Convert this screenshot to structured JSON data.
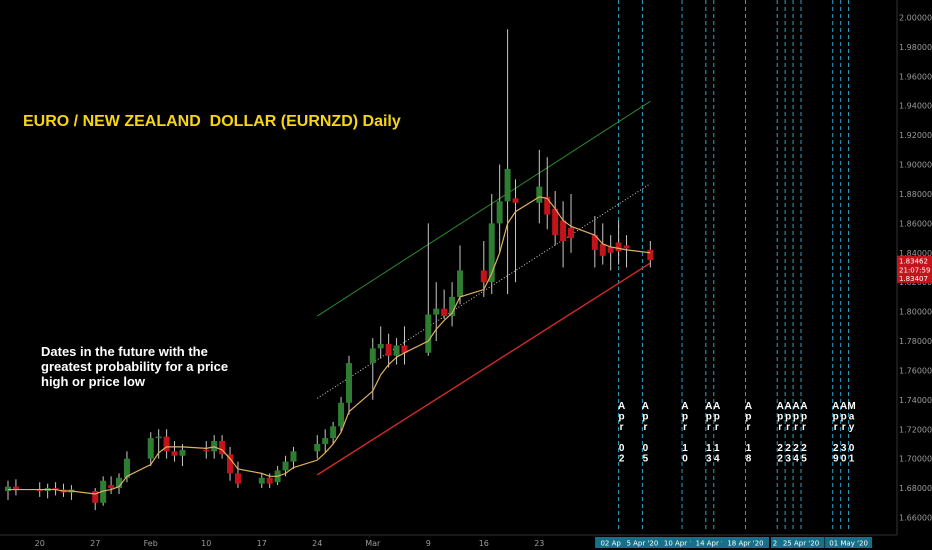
{
  "chart_title": "EURO / NEW ZEALAND  DOLLAR (EURNZD) Daily",
  "annotation": "Dates in the future with the greatest probability for a price high or price low",
  "colors": {
    "background": "#000000",
    "up_candle": "#2e7d32",
    "down_candle": "#c4141b",
    "wick": "#c8c8c8",
    "moving_average": "#e0b060",
    "upper_channel": "#2f8a2f",
    "support_line": "#d42a2a",
    "midline": "#d0d0d0",
    "forecast_line": "#2aa5c8",
    "title": "#f5d516",
    "date_tag_bg": "#1a6f88",
    "price_tag_bg": "#c4141b"
  },
  "chart_data": {
    "type": "candlestick",
    "title": "EURO / NEW ZEALAND  DOLLAR (EURNZD) Daily",
    "ylim": [
      1.65,
      2.01
    ],
    "y_ticks": [
      "2.00000",
      "1.98000",
      "1.96000",
      "1.94000",
      "1.92000",
      "1.90000",
      "1.88000",
      "1.86000",
      "1.84000",
      "1.82000",
      "1.80000",
      "1.78000",
      "1.76000",
      "1.74000",
      "1.72000",
      "1.70000",
      "1.68000",
      "1.66000"
    ],
    "x_ticks": [
      "20",
      "27",
      "Feb",
      "10",
      "17",
      "24",
      "Mar",
      "9",
      "16",
      "23"
    ],
    "candles": [
      {
        "date": "2020-01-16",
        "o": 1.678,
        "h": 1.685,
        "l": 1.672,
        "c": 1.681
      },
      {
        "date": "2020-01-17",
        "o": 1.681,
        "h": 1.686,
        "l": 1.675,
        "c": 1.679
      },
      {
        "date": "2020-01-20",
        "o": 1.679,
        "h": 1.684,
        "l": 1.674,
        "c": 1.678
      },
      {
        "date": "2020-01-21",
        "o": 1.678,
        "h": 1.683,
        "l": 1.673,
        "c": 1.68
      },
      {
        "date": "2020-01-22",
        "o": 1.68,
        "h": 1.684,
        "l": 1.675,
        "c": 1.679
      },
      {
        "date": "2020-01-23",
        "o": 1.679,
        "h": 1.683,
        "l": 1.674,
        "c": 1.677
      },
      {
        "date": "2020-01-24",
        "o": 1.677,
        "h": 1.682,
        "l": 1.672,
        "c": 1.679
      },
      {
        "date": "2020-01-27",
        "o": 1.678,
        "h": 1.68,
        "l": 1.665,
        "c": 1.67
      },
      {
        "date": "2020-01-28",
        "o": 1.67,
        "h": 1.688,
        "l": 1.668,
        "c": 1.685
      },
      {
        "date": "2020-01-29",
        "o": 1.682,
        "h": 1.688,
        "l": 1.676,
        "c": 1.68
      },
      {
        "date": "2020-01-30",
        "o": 1.68,
        "h": 1.69,
        "l": 1.676,
        "c": 1.687
      },
      {
        "date": "2020-01-31",
        "o": 1.687,
        "h": 1.705,
        "l": 1.684,
        "c": 1.7
      },
      {
        "date": "2020-02-03",
        "o": 1.7,
        "h": 1.718,
        "l": 1.695,
        "c": 1.714
      },
      {
        "date": "2020-02-04",
        "o": 1.714,
        "h": 1.72,
        "l": 1.7,
        "c": 1.715
      },
      {
        "date": "2020-02-05",
        "o": 1.715,
        "h": 1.72,
        "l": 1.7,
        "c": 1.705
      },
      {
        "date": "2020-02-06",
        "o": 1.705,
        "h": 1.712,
        "l": 1.698,
        "c": 1.702
      },
      {
        "date": "2020-02-07",
        "o": 1.702,
        "h": 1.71,
        "l": 1.695,
        "c": 1.706
      },
      {
        "date": "2020-02-10",
        "o": 1.706,
        "h": 1.712,
        "l": 1.7,
        "c": 1.705
      },
      {
        "date": "2020-02-11",
        "o": 1.705,
        "h": 1.716,
        "l": 1.7,
        "c": 1.712
      },
      {
        "date": "2020-02-12",
        "o": 1.712,
        "h": 1.716,
        "l": 1.7,
        "c": 1.703
      },
      {
        "date": "2020-02-13",
        "o": 1.703,
        "h": 1.708,
        "l": 1.685,
        "c": 1.69
      },
      {
        "date": "2020-02-14",
        "o": 1.69,
        "h": 1.698,
        "l": 1.68,
        "c": 1.683
      },
      {
        "date": "2020-02-17",
        "o": 1.683,
        "h": 1.69,
        "l": 1.68,
        "c": 1.687
      },
      {
        "date": "2020-02-18",
        "o": 1.687,
        "h": 1.69,
        "l": 1.68,
        "c": 1.683
      },
      {
        "date": "2020-02-19",
        "o": 1.684,
        "h": 1.695,
        "l": 1.682,
        "c": 1.692
      },
      {
        "date": "2020-02-20",
        "o": 1.692,
        "h": 1.702,
        "l": 1.688,
        "c": 1.698
      },
      {
        "date": "2020-02-21",
        "o": 1.698,
        "h": 1.708,
        "l": 1.693,
        "c": 1.705
      },
      {
        "date": "2020-02-24",
        "o": 1.705,
        "h": 1.716,
        "l": 1.7,
        "c": 1.71
      },
      {
        "date": "2020-02-25",
        "o": 1.71,
        "h": 1.72,
        "l": 1.704,
        "c": 1.714
      },
      {
        "date": "2020-02-26",
        "o": 1.714,
        "h": 1.725,
        "l": 1.71,
        "c": 1.722
      },
      {
        "date": "2020-02-27",
        "o": 1.722,
        "h": 1.742,
        "l": 1.718,
        "c": 1.738
      },
      {
        "date": "2020-02-28",
        "o": 1.738,
        "h": 1.77,
        "l": 1.73,
        "c": 1.765
      },
      {
        "date": "2020-03-02",
        "o": 1.765,
        "h": 1.782,
        "l": 1.74,
        "c": 1.775
      },
      {
        "date": "2020-03-03",
        "o": 1.775,
        "h": 1.79,
        "l": 1.768,
        "c": 1.778
      },
      {
        "date": "2020-03-04",
        "o": 1.778,
        "h": 1.785,
        "l": 1.762,
        "c": 1.77
      },
      {
        "date": "2020-03-05",
        "o": 1.77,
        "h": 1.782,
        "l": 1.764,
        "c": 1.777
      },
      {
        "date": "2020-03-06",
        "o": 1.777,
        "h": 1.79,
        "l": 1.764,
        "c": 1.772
      },
      {
        "date": "2020-03-09",
        "o": 1.772,
        "h": 1.86,
        "l": 1.77,
        "c": 1.798
      },
      {
        "date": "2020-03-10",
        "o": 1.798,
        "h": 1.82,
        "l": 1.78,
        "c": 1.802
      },
      {
        "date": "2020-03-11",
        "o": 1.802,
        "h": 1.815,
        "l": 1.795,
        "c": 1.797
      },
      {
        "date": "2020-03-12",
        "o": 1.797,
        "h": 1.82,
        "l": 1.79,
        "c": 1.81
      },
      {
        "date": "2020-03-13",
        "o": 1.81,
        "h": 1.845,
        "l": 1.805,
        "c": 1.828
      },
      {
        "date": "2020-03-16",
        "o": 1.828,
        "h": 1.848,
        "l": 1.81,
        "c": 1.82
      },
      {
        "date": "2020-03-17",
        "o": 1.82,
        "h": 1.88,
        "l": 1.812,
        "c": 1.86
      },
      {
        "date": "2020-03-18",
        "o": 1.86,
        "h": 1.9,
        "l": 1.84,
        "c": 1.875
      },
      {
        "date": "2020-03-19",
        "o": 1.875,
        "h": 1.992,
        "l": 1.812,
        "c": 1.897
      },
      {
        "date": "2020-03-20",
        "o": 1.877,
        "h": 1.89,
        "l": 1.82,
        "c": 1.874
      },
      {
        "date": "2020-03-23",
        "o": 1.874,
        "h": 1.91,
        "l": 1.86,
        "c": 1.885
      },
      {
        "date": "2020-03-24",
        "o": 1.878,
        "h": 1.905,
        "l": 1.856,
        "c": 1.866
      },
      {
        "date": "2020-03-25",
        "o": 1.87,
        "h": 1.882,
        "l": 1.845,
        "c": 1.852
      },
      {
        "date": "2020-03-26",
        "o": 1.862,
        "h": 1.875,
        "l": 1.83,
        "c": 1.848
      },
      {
        "date": "2020-03-27",
        "o": 1.857,
        "h": 1.88,
        "l": 1.84,
        "c": 1.85
      },
      {
        "date": "2020-03-30",
        "o": 1.852,
        "h": 1.865,
        "l": 1.83,
        "c": 1.842
      },
      {
        "date": "2020-03-31",
        "o": 1.846,
        "h": 1.86,
        "l": 1.832,
        "c": 1.838
      },
      {
        "date": "2020-04-01",
        "o": 1.844,
        "h": 1.852,
        "l": 1.828,
        "c": 1.84
      },
      {
        "date": "2020-04-02",
        "o": 1.847,
        "h": 1.862,
        "l": 1.832,
        "c": 1.841
      },
      {
        "date": "2020-04-03",
        "o": 1.845,
        "h": 1.852,
        "l": 1.83,
        "c": 1.843
      },
      {
        "date": "2020-04-06",
        "o": 1.842,
        "h": 1.848,
        "l": 1.83,
        "c": 1.835
      }
    ],
    "moving_average": [
      1.679,
      1.679,
      1.679,
      1.679,
      1.679,
      1.678,
      1.678,
      1.676,
      1.678,
      1.679,
      1.681,
      1.688,
      1.696,
      1.704,
      1.708,
      1.708,
      1.708,
      1.707,
      1.708,
      1.706,
      1.7,
      1.693,
      1.69,
      1.688,
      1.688,
      1.69,
      1.694,
      1.699,
      1.704,
      1.71,
      1.718,
      1.732,
      1.746,
      1.757,
      1.764,
      1.769,
      1.772,
      1.78,
      1.788,
      1.794,
      1.799,
      1.81,
      1.815,
      1.826,
      1.84,
      1.86,
      1.868,
      1.878,
      1.877,
      1.87,
      1.862,
      1.858,
      1.852,
      1.846,
      1.844,
      1.843,
      1.842,
      1.84
    ],
    "upper_channel": [
      {
        "date": "2020-02-24",
        "y": 1.797
      },
      {
        "date": "2020-04-06",
        "y": 1.943
      }
    ],
    "midline": [
      {
        "date": "2020-02-24",
        "y": 1.741
      },
      {
        "date": "2020-04-06",
        "y": 1.887
      }
    ],
    "support_line": [
      {
        "date": "2020-02-24",
        "y": 1.689
      },
      {
        "date": "2020-04-06",
        "y": 1.833
      }
    ],
    "forecast_dates": [
      {
        "date": "2020-04-02",
        "label": "Apr\n02"
      },
      {
        "date": "2020-04-05",
        "label": "Apr\n05"
      },
      {
        "date": "2020-04-10",
        "label": "Apr\n10"
      },
      {
        "date": "2020-04-13",
        "label": "Apr\n13"
      },
      {
        "date": "2020-04-14",
        "label": "Apr\n14"
      },
      {
        "date": "2020-04-18",
        "label": "Apr\n18"
      },
      {
        "date": "2020-04-22",
        "label": "Apr\n22"
      },
      {
        "date": "2020-04-23",
        "label": "Apr\n23"
      },
      {
        "date": "2020-04-24",
        "label": "Apr\n24"
      },
      {
        "date": "2020-04-25",
        "label": "Apr\n25"
      },
      {
        "date": "2020-04-29",
        "label": "Apr\n29"
      },
      {
        "date": "2020-04-30",
        "label": "Apr\n30"
      },
      {
        "date": "2020-05-01",
        "label": "May\n01"
      }
    ],
    "bottom_date_labels": [
      "02 Apr '20",
      "5 Apr '20",
      "10 Apr '20",
      "13",
      "14 Apr '20",
      "18 Apr '20",
      "22",
      "23",
      "24",
      "25 Apr '20",
      "29",
      "01 May '20"
    ],
    "price_labels": [
      {
        "text": "1.83462",
        "y": 1.83462
      },
      {
        "text": "21:07:59",
        "y": 1.8285
      },
      {
        "text": "1.83407",
        "y": 1.82295
      }
    ],
    "grid": false,
    "legend": "none"
  }
}
